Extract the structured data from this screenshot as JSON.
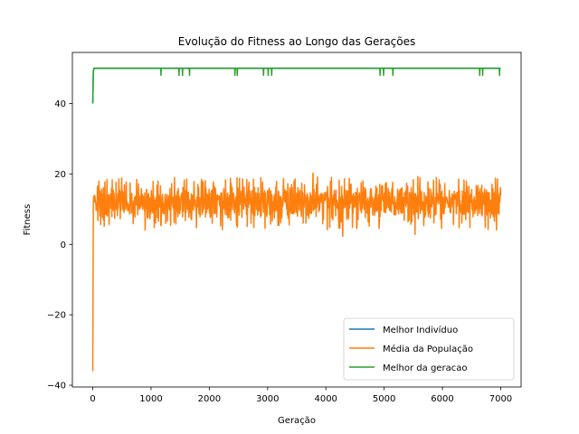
{
  "chart_data": {
    "type": "line",
    "title": "Evolução do Fitness ao Longo das Gerações",
    "xlabel": "Geração",
    "ylabel": "Fitness",
    "xlim": [
      -350,
      7350
    ],
    "ylim": [
      -40.5,
      54.5
    ],
    "xticks": [
      0,
      1000,
      2000,
      3000,
      4000,
      5000,
      6000,
      7000
    ],
    "yticks": [
      -40,
      -20,
      0,
      20,
      40
    ],
    "grid": false,
    "legend_position": "lower right",
    "series": [
      {
        "name": "Melhor Indivíduo",
        "color": "#1f77b4",
        "points": [
          [
            0,
            40
          ],
          [
            10,
            49
          ],
          [
            20,
            50
          ],
          [
            7000,
            50
          ]
        ]
      },
      {
        "name": "Média da População",
        "color": "#ff7f0e",
        "baseline": 12,
        "noise_range": [
          7,
          17
        ],
        "points": [
          [
            0,
            -36
          ],
          [
            10,
            12
          ],
          [
            3780,
            20.2
          ],
          [
            4290,
            2.3
          ],
          [
            5530,
            2.8
          ],
          [
            7000,
            14
          ]
        ]
      },
      {
        "name": "Melhor da geracao",
        "color": "#2ca02c",
        "baseline": 50,
        "points": [
          [
            0,
            40
          ],
          [
            10,
            49
          ],
          [
            20,
            50
          ],
          [
            1170,
            48
          ],
          [
            1480,
            48
          ],
          [
            1540,
            48
          ],
          [
            1660,
            48
          ],
          [
            2440,
            48
          ],
          [
            2480,
            48
          ],
          [
            2930,
            48
          ],
          [
            3010,
            48
          ],
          [
            3070,
            48
          ],
          [
            4930,
            48
          ],
          [
            4990,
            48
          ],
          [
            5150,
            48
          ],
          [
            6640,
            48
          ],
          [
            6690,
            48
          ],
          [
            6980,
            48
          ],
          [
            7000,
            50
          ]
        ]
      }
    ]
  }
}
